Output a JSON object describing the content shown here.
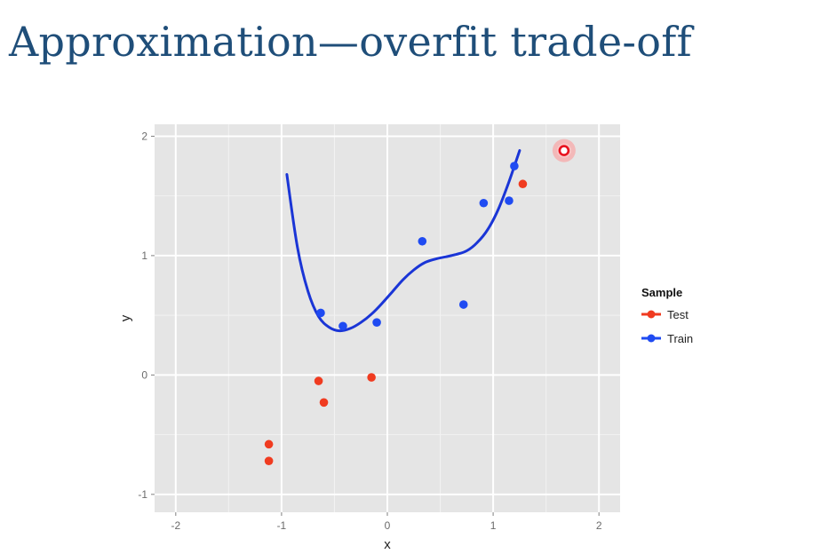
{
  "slide": {
    "title": "Approximation—overfit trade-off"
  },
  "chart_data": {
    "type": "scatter",
    "xlabel": "x",
    "ylabel": "y",
    "xlim": [
      -2.2,
      2.2
    ],
    "ylim": [
      -1.15,
      2.1
    ],
    "x_ticks": [
      -2,
      -1,
      0,
      1,
      2
    ],
    "y_ticks": [
      -1,
      0,
      1,
      2
    ],
    "grid": true,
    "background": "#e5e5e5",
    "legend": {
      "title": "Sample",
      "position": "right",
      "entries": [
        "Test",
        "Train"
      ]
    },
    "series": [
      {
        "name": "Test",
        "color": "#f03b20",
        "points": [
          {
            "x": -1.12,
            "y": -0.58
          },
          {
            "x": -1.12,
            "y": -0.72
          },
          {
            "x": -0.65,
            "y": -0.05
          },
          {
            "x": -0.6,
            "y": -0.23
          },
          {
            "x": -0.15,
            "y": -0.02
          },
          {
            "x": 1.28,
            "y": 1.6
          },
          {
            "x": 1.67,
            "y": 1.88
          }
        ],
        "highlighted_point_index": 6
      },
      {
        "name": "Train",
        "color": "#1f4bf2",
        "points": [
          {
            "x": -0.63,
            "y": 0.52
          },
          {
            "x": -0.42,
            "y": 0.41
          },
          {
            "x": -0.1,
            "y": 0.44
          },
          {
            "x": 0.33,
            "y": 1.12
          },
          {
            "x": 0.72,
            "y": 0.59
          },
          {
            "x": 0.91,
            "y": 1.44
          },
          {
            "x": 1.15,
            "y": 1.46
          },
          {
            "x": 1.2,
            "y": 1.75
          }
        ]
      }
    ],
    "fit_curve": {
      "color": "#1a35d6",
      "points": [
        {
          "x": -0.95,
          "y": 1.68
        },
        {
          "x": -0.85,
          "y": 1.07
        },
        {
          "x": -0.75,
          "y": 0.7
        },
        {
          "x": -0.65,
          "y": 0.49
        },
        {
          "x": -0.55,
          "y": 0.4
        },
        {
          "x": -0.45,
          "y": 0.37
        },
        {
          "x": -0.35,
          "y": 0.39
        },
        {
          "x": -0.25,
          "y": 0.44
        },
        {
          "x": -0.15,
          "y": 0.51
        },
        {
          "x": -0.05,
          "y": 0.6
        },
        {
          "x": 0.05,
          "y": 0.7
        },
        {
          "x": 0.15,
          "y": 0.8
        },
        {
          "x": 0.25,
          "y": 0.88
        },
        {
          "x": 0.35,
          "y": 0.94
        },
        {
          "x": 0.45,
          "y": 0.97
        },
        {
          "x": 0.55,
          "y": 0.99
        },
        {
          "x": 0.65,
          "y": 1.01
        },
        {
          "x": 0.75,
          "y": 1.04
        },
        {
          "x": 0.85,
          "y": 1.11
        },
        {
          "x": 0.95,
          "y": 1.22
        },
        {
          "x": 1.05,
          "y": 1.39
        },
        {
          "x": 1.15,
          "y": 1.62
        },
        {
          "x": 1.25,
          "y": 1.88
        }
      ]
    }
  }
}
